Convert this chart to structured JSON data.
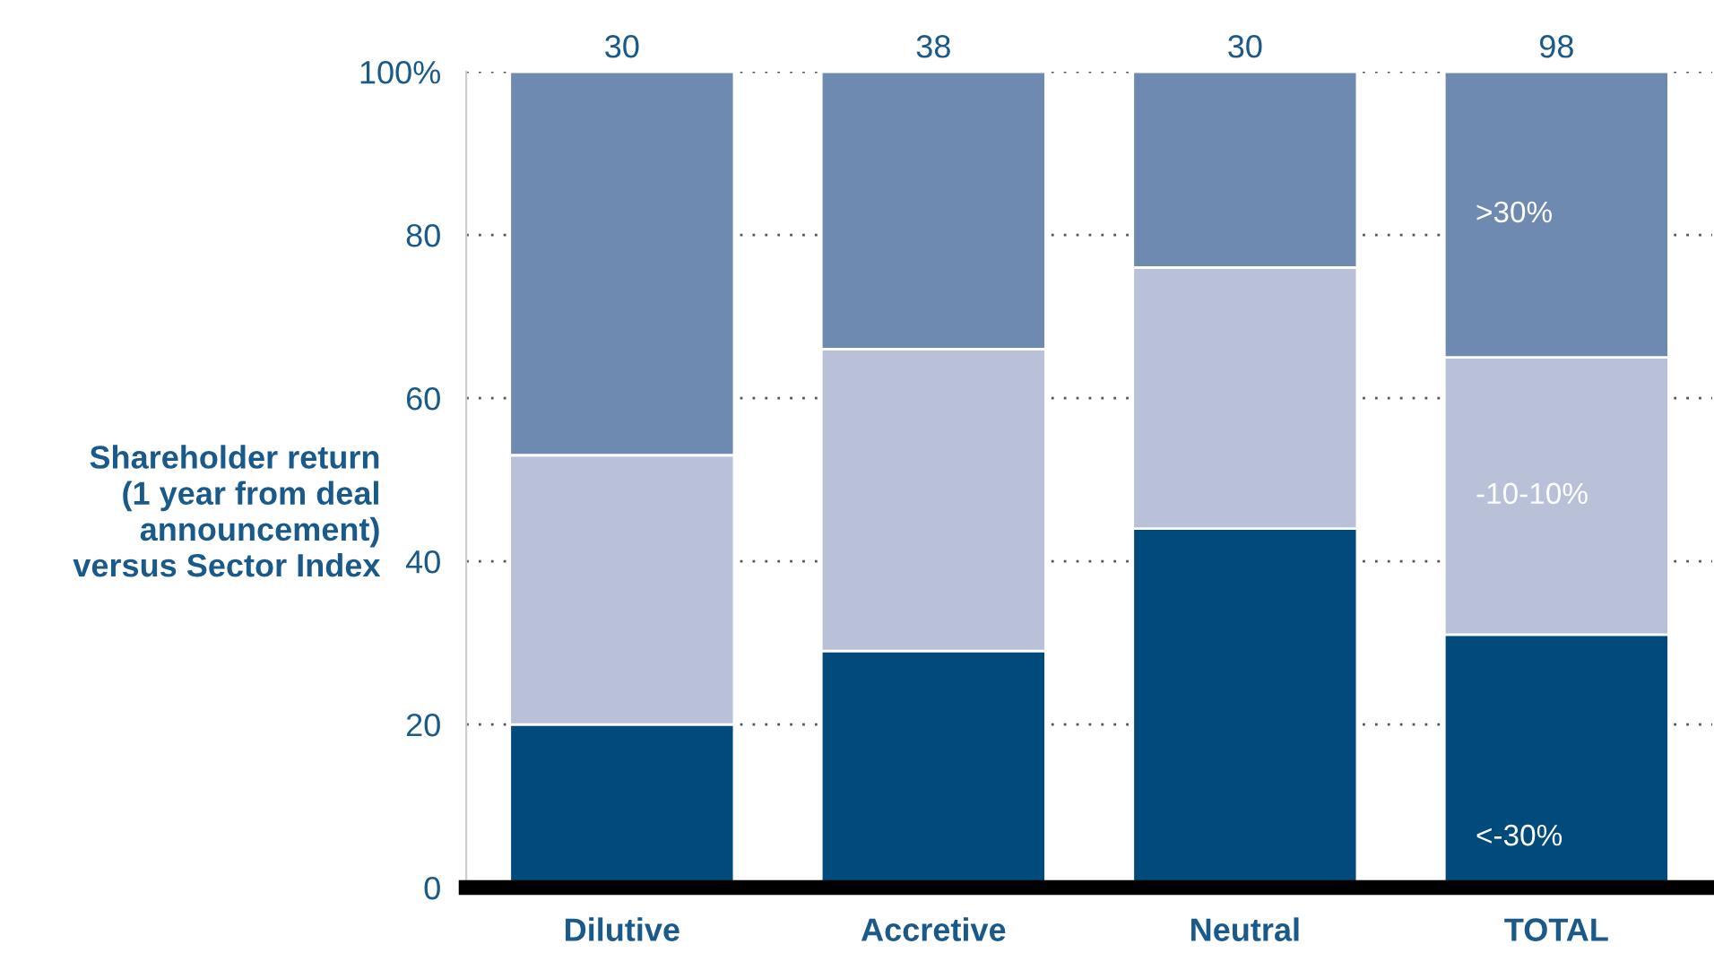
{
  "chart_data": {
    "type": "bar",
    "stacked": true,
    "ylabel": "Shareholder return\n(1 year from deal\nannouncement)\nversus Sector Index",
    "categories": [
      "Dilutive",
      "Accretive",
      "Neutral",
      "TOTAL"
    ],
    "series": [
      {
        "name": "<-30%",
        "color": "#004b7c",
        "values": [
          20,
          29,
          44,
          31
        ]
      },
      {
        "name": "-10-10%",
        "color": "#b8c1d8",
        "values": [
          33,
          37,
          32,
          34
        ]
      },
      {
        "name": ">30%",
        "color": "#6f8ab0",
        "values": [
          47,
          34,
          24,
          35
        ]
      }
    ],
    "annotations": [
      {
        "text": "30",
        "x": "Dilutive",
        "y": 100
      },
      {
        "text": "38",
        "x": "Accretive",
        "y": 100
      },
      {
        "text": "30",
        "x": "Neutral",
        "y": 100
      },
      {
        "text": "98",
        "x": "TOTAL",
        "y": 100
      }
    ],
    "ylim": [
      0,
      100
    ],
    "yticks": [
      0,
      20,
      40,
      60,
      80,
      {
        "value": 100,
        "label": "100%"
      }
    ],
    "grid": "y",
    "legend": false
  }
}
